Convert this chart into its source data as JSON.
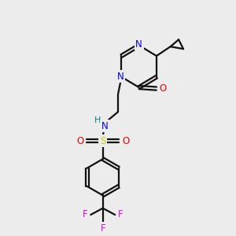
{
  "bg_color": "#ececec",
  "atom_colors": {
    "N": "#0000ee",
    "O": "#ee0000",
    "S": "#cccc00",
    "F": "#ee00ee",
    "H": "#008080",
    "C": "#111111"
  },
  "bond_color": "#111111",
  "bond_width": 1.6,
  "fig_w": 3.0,
  "fig_h": 3.0,
  "dpi": 100
}
